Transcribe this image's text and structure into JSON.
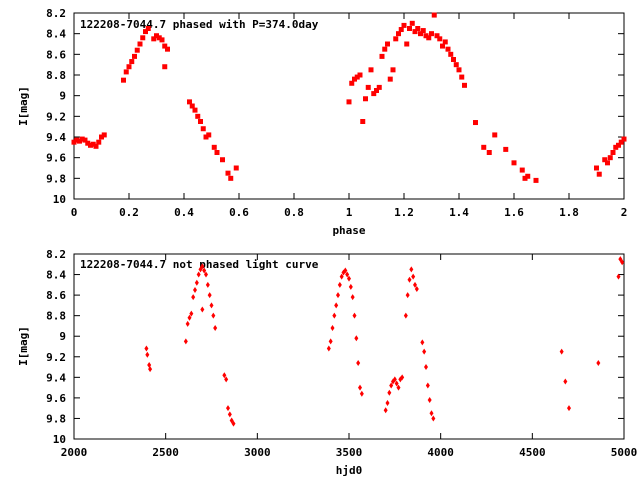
{
  "chart_data": [
    {
      "type": "scatter",
      "title": "122208-7044.7 phased with P=374.0day",
      "xlabel": "phase",
      "ylabel": "I[mag]",
      "xlim": [
        0,
        2
      ],
      "ylim": [
        8.2,
        10
      ],
      "y_inverted": true,
      "xticks": [
        "0",
        "0.2",
        "0.4",
        "0.6",
        "0.8",
        "1",
        "1.2",
        "1.4",
        "1.6",
        "1.8",
        "2"
      ],
      "yticks": [
        "8.2",
        "8.4",
        "8.6",
        "8.8",
        "9",
        "9.2",
        "9.4",
        "9.6",
        "9.8",
        "10"
      ],
      "grid": false,
      "marker_color": "#ff0000",
      "marker": "filled-square",
      "series": [
        {
          "points": [
            [
              0.0,
              9.45
            ],
            [
              0.01,
              9.43
            ],
            [
              0.02,
              9.44
            ],
            [
              0.03,
              9.42
            ],
            [
              0.04,
              9.43
            ],
            [
              0.05,
              9.46
            ],
            [
              0.06,
              9.48
            ],
            [
              0.07,
              9.47
            ],
            [
              0.08,
              9.49
            ],
            [
              0.09,
              9.45
            ],
            [
              0.1,
              9.4
            ],
            [
              0.11,
              9.38
            ],
            [
              0.18,
              8.85
            ],
            [
              0.19,
              8.77
            ],
            [
              0.2,
              8.72
            ],
            [
              0.21,
              8.67
            ],
            [
              0.22,
              8.62
            ],
            [
              0.23,
              8.56
            ],
            [
              0.24,
              8.5
            ],
            [
              0.25,
              8.44
            ],
            [
              0.26,
              8.38
            ],
            [
              0.27,
              8.35
            ],
            [
              0.29,
              8.45
            ],
            [
              0.3,
              8.42
            ],
            [
              0.31,
              8.44
            ],
            [
              0.32,
              8.46
            ],
            [
              0.33,
              8.52
            ],
            [
              0.34,
              8.55
            ],
            [
              0.33,
              8.72
            ],
            [
              0.42,
              9.06
            ],
            [
              0.43,
              9.1
            ],
            [
              0.44,
              9.14
            ],
            [
              0.45,
              9.2
            ],
            [
              0.46,
              9.25
            ],
            [
              0.47,
              9.32
            ],
            [
              0.48,
              9.4
            ],
            [
              0.49,
              9.38
            ],
            [
              0.51,
              9.5
            ],
            [
              0.52,
              9.55
            ],
            [
              0.54,
              9.62
            ],
            [
              0.56,
              9.75
            ],
            [
              0.57,
              9.8
            ],
            [
              0.59,
              9.7
            ],
            [
              1.0,
              9.06
            ],
            [
              1.01,
              8.88
            ],
            [
              1.02,
              8.84
            ],
            [
              1.03,
              8.82
            ],
            [
              1.04,
              8.8
            ],
            [
              1.05,
              9.25
            ],
            [
              1.06,
              9.03
            ],
            [
              1.07,
              8.92
            ],
            [
              1.08,
              8.75
            ],
            [
              1.09,
              8.98
            ],
            [
              1.1,
              8.95
            ],
            [
              1.11,
              8.92
            ],
            [
              1.12,
              8.62
            ],
            [
              1.13,
              8.55
            ],
            [
              1.14,
              8.5
            ],
            [
              1.15,
              8.84
            ],
            [
              1.16,
              8.75
            ],
            [
              1.17,
              8.45
            ],
            [
              1.18,
              8.4
            ],
            [
              1.19,
              8.36
            ],
            [
              1.2,
              8.32
            ],
            [
              1.21,
              8.5
            ],
            [
              1.22,
              8.35
            ],
            [
              1.23,
              8.3
            ],
            [
              1.24,
              8.38
            ],
            [
              1.25,
              8.35
            ],
            [
              1.26,
              8.4
            ],
            [
              1.27,
              8.37
            ],
            [
              1.28,
              8.42
            ],
            [
              1.29,
              8.44
            ],
            [
              1.3,
              8.4
            ],
            [
              1.31,
              8.22
            ],
            [
              1.32,
              8.42
            ],
            [
              1.33,
              8.45
            ],
            [
              1.34,
              8.52
            ],
            [
              1.35,
              8.48
            ],
            [
              1.36,
              8.55
            ],
            [
              1.37,
              8.6
            ],
            [
              1.38,
              8.65
            ],
            [
              1.39,
              8.7
            ],
            [
              1.4,
              8.75
            ],
            [
              1.41,
              8.82
            ],
            [
              1.42,
              8.9
            ],
            [
              1.46,
              9.26
            ],
            [
              1.49,
              9.5
            ],
            [
              1.51,
              9.55
            ],
            [
              1.53,
              9.38
            ],
            [
              1.57,
              9.52
            ],
            [
              1.6,
              9.65
            ],
            [
              1.63,
              9.72
            ],
            [
              1.64,
              9.8
            ],
            [
              1.65,
              9.78
            ],
            [
              1.68,
              9.82
            ],
            [
              1.9,
              9.7
            ],
            [
              1.91,
              9.76
            ],
            [
              1.93,
              9.62
            ],
            [
              1.94,
              9.65
            ],
            [
              1.95,
              9.6
            ],
            [
              1.96,
              9.55
            ],
            [
              1.97,
              9.5
            ],
            [
              1.98,
              9.48
            ],
            [
              1.99,
              9.45
            ],
            [
              2.0,
              9.42
            ]
          ]
        }
      ]
    },
    {
      "type": "scatter",
      "title": "122208-7044.7 not phased light curve",
      "xlabel": "hjd0",
      "ylabel": "I[mag]",
      "xlim": [
        2000,
        5000
      ],
      "ylim": [
        8.2,
        10
      ],
      "y_inverted": true,
      "xticks": [
        "2000",
        "2500",
        "3000",
        "3500",
        "4000",
        "4500",
        "5000"
      ],
      "yticks": [
        "8.2",
        "8.4",
        "8.6",
        "8.8",
        "9",
        "9.2",
        "9.4",
        "9.6",
        "9.8",
        "10"
      ],
      "grid": false,
      "marker_color": "#ff0000",
      "marker": "filled-diamond",
      "series": [
        {
          "points": [
            [
              2395,
              9.12
            ],
            [
              2400,
              9.18
            ],
            [
              2410,
              9.28
            ],
            [
              2415,
              9.32
            ],
            [
              2610,
              9.05
            ],
            [
              2620,
              8.88
            ],
            [
              2630,
              8.82
            ],
            [
              2640,
              8.78
            ],
            [
              2650,
              8.62
            ],
            [
              2660,
              8.55
            ],
            [
              2670,
              8.48
            ],
            [
              2680,
              8.4
            ],
            [
              2690,
              8.35
            ],
            [
              2700,
              8.32
            ],
            [
              2710,
              8.36
            ],
            [
              2720,
              8.4
            ],
            [
              2700,
              8.74
            ],
            [
              2730,
              8.5
            ],
            [
              2740,
              8.6
            ],
            [
              2750,
              8.7
            ],
            [
              2760,
              8.8
            ],
            [
              2770,
              8.92
            ],
            [
              2820,
              9.38
            ],
            [
              2830,
              9.42
            ],
            [
              2840,
              9.7
            ],
            [
              2850,
              9.76
            ],
            [
              2860,
              9.82
            ],
            [
              2870,
              9.85
            ],
            [
              3390,
              9.12
            ],
            [
              3400,
              9.05
            ],
            [
              3410,
              8.92
            ],
            [
              3420,
              8.8
            ],
            [
              3430,
              8.7
            ],
            [
              3440,
              8.6
            ],
            [
              3450,
              8.5
            ],
            [
              3460,
              8.42
            ],
            [
              3470,
              8.38
            ],
            [
              3480,
              8.36
            ],
            [
              3490,
              8.4
            ],
            [
              3500,
              8.44
            ],
            [
              3510,
              8.52
            ],
            [
              3520,
              8.62
            ],
            [
              3530,
              8.8
            ],
            [
              3540,
              9.02
            ],
            [
              3550,
              9.26
            ],
            [
              3560,
              9.5
            ],
            [
              3570,
              9.56
            ],
            [
              3700,
              9.72
            ],
            [
              3710,
              9.65
            ],
            [
              3720,
              9.55
            ],
            [
              3730,
              9.48
            ],
            [
              3740,
              9.44
            ],
            [
              3750,
              9.42
            ],
            [
              3760,
              9.46
            ],
            [
              3770,
              9.5
            ],
            [
              3780,
              9.42
            ],
            [
              3790,
              9.4
            ],
            [
              3810,
              8.8
            ],
            [
              3820,
              8.6
            ],
            [
              3830,
              8.45
            ],
            [
              3840,
              8.35
            ],
            [
              3850,
              8.42
            ],
            [
              3860,
              8.5
            ],
            [
              3870,
              8.54
            ],
            [
              3900,
              9.06
            ],
            [
              3910,
              9.15
            ],
            [
              3920,
              9.3
            ],
            [
              3930,
              9.48
            ],
            [
              3940,
              9.62
            ],
            [
              3950,
              9.75
            ],
            [
              3960,
              9.8
            ],
            [
              4660,
              9.15
            ],
            [
              4680,
              9.44
            ],
            [
              4700,
              9.7
            ],
            [
              4860,
              9.26
            ],
            [
              4970,
              8.42
            ],
            [
              4980,
              8.25
            ],
            [
              4990,
              8.28
            ]
          ]
        }
      ]
    }
  ]
}
